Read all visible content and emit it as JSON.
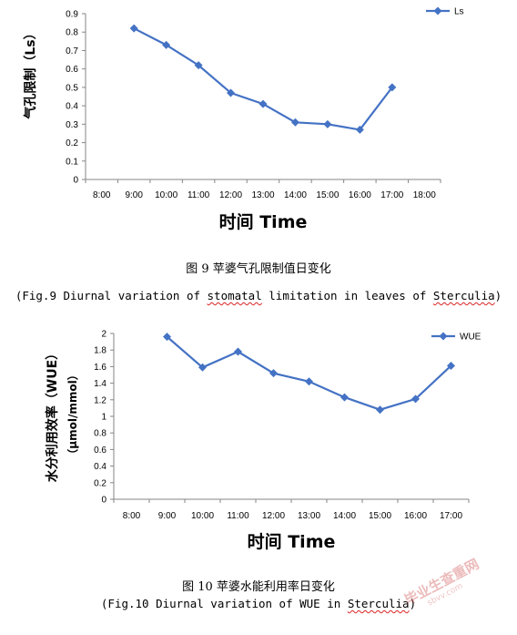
{
  "chart_data": [
    {
      "type": "line",
      "categories": [
        "8:00",
        "9:00",
        "10:00",
        "11:00",
        "12:00",
        "13:00",
        "14:00",
        "15:00",
        "16:00",
        "17:00",
        "18:00"
      ],
      "series": [
        {
          "name": "Ls",
          "x": [
            "9:00",
            "10:00",
            "11:00",
            "12:00",
            "13:00",
            "14:00",
            "15:00",
            "16:00",
            "17:00"
          ],
          "values": [
            0.82,
            0.73,
            0.62,
            0.47,
            0.41,
            0.31,
            0.3,
            0.27,
            0.5
          ],
          "color": "#4472C4"
        }
      ],
      "ylim": [
        0,
        0.9
      ],
      "yticks": [
        "0",
        "0.1",
        "0.2",
        "0.3",
        "0.4",
        "0.5",
        "0.6",
        "0.7",
        "0.8",
        "0.9"
      ],
      "xlabel": "时间 Time",
      "ylabel": "气孔限制（Ls）",
      "legend_position": "top-right",
      "grid": false
    },
    {
      "type": "line",
      "categories": [
        "8:00",
        "9:00",
        "10:00",
        "11:00",
        "12:00",
        "13:00",
        "14:00",
        "15:00",
        "16:00",
        "17:00"
      ],
      "series": [
        {
          "name": "WUE",
          "x": [
            "9:00",
            "10:00",
            "11:00",
            "12:00",
            "13:00",
            "14:00",
            "15:00",
            "16:00",
            "17:00"
          ],
          "values": [
            1.96,
            1.59,
            1.78,
            1.52,
            1.42,
            1.23,
            1.08,
            1.21,
            1.61
          ],
          "color": "#4472C4"
        }
      ],
      "ylim": [
        0,
        2
      ],
      "yticks": [
        "0",
        "0.2",
        "0.4",
        "0.6",
        "0.8",
        "1",
        "1.2",
        "1.4",
        "1.6",
        "1.8",
        "2"
      ],
      "xlabel": "时间 Time",
      "ylabel": "水分利用效率（WUE）",
      "ylabel2": "（μmol/mmol）",
      "legend_position": "top-right",
      "grid": false
    }
  ],
  "captions": {
    "fig9_title": "图 9   苹婆气孔限制值日变化",
    "fig9_en_pre": "(Fig.9 Diurnal variation of ",
    "fig9_en_word1": "stomatal",
    "fig9_en_mid": " limitation in leaves of ",
    "fig9_en_word2": "Sterculia",
    "fig9_en_post": ")",
    "fig10_title": "图 10  苹婆水能利用率日变化",
    "fig10_en_pre": "(Fig.10 Diurnal variation of WUE in ",
    "fig10_en_word": "Sterculia",
    "fig10_en_post": ")"
  },
  "watermark": {
    "text": "毕业生查重网",
    "sub": "sbvv.com"
  }
}
